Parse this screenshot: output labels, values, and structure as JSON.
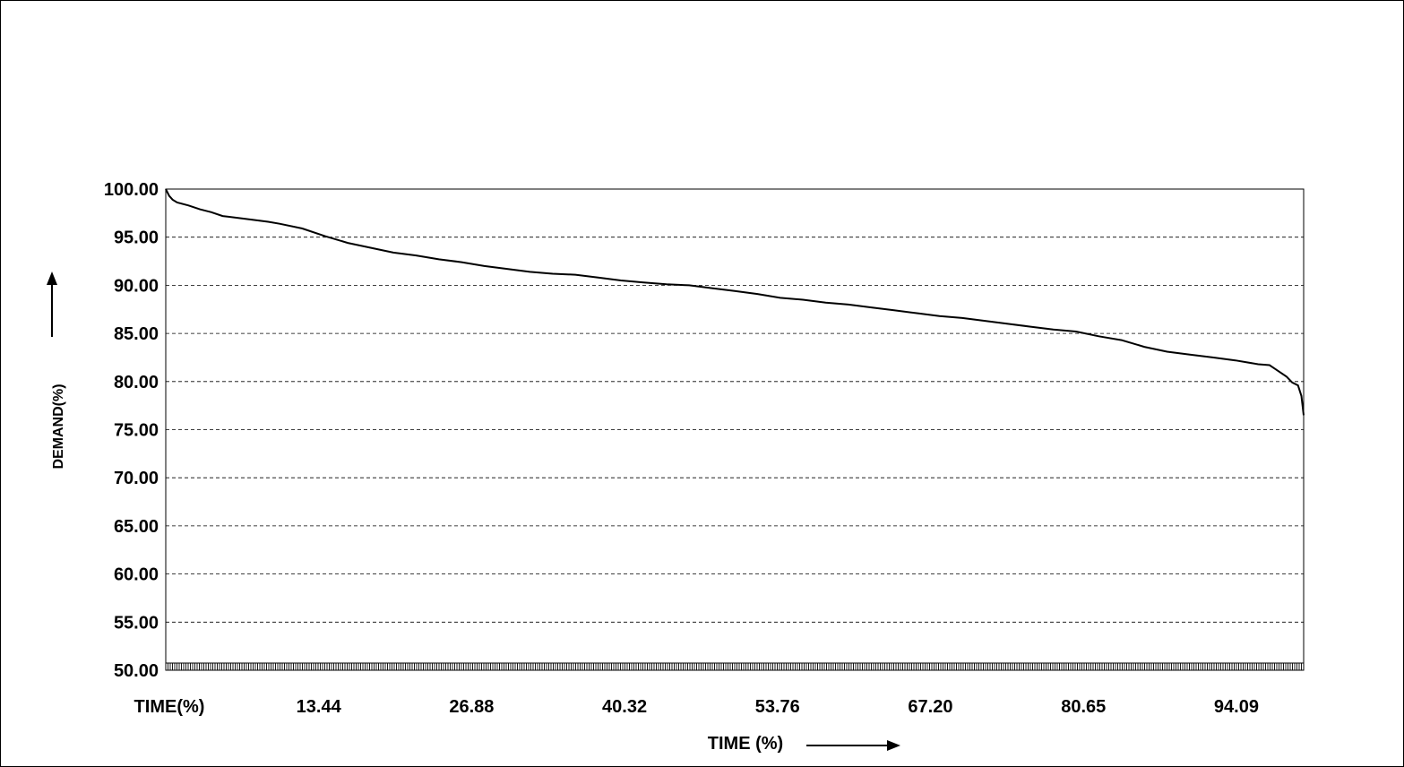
{
  "chart_data": {
    "type": "line",
    "title": "",
    "xlabel": "TIME (%)",
    "ylabel": "DEMAND(%)",
    "ylim": [
      50,
      100
    ],
    "xlim": [
      0,
      100
    ],
    "grid": "horizontal dashed",
    "legend": "none",
    "y_ticks": [
      "50.00",
      "55.00",
      "60.00",
      "65.00",
      "70.00",
      "75.00",
      "80.00",
      "85.00",
      "90.00",
      "95.00",
      "100.00"
    ],
    "x_tick_labels": [
      {
        "x": 0,
        "label": "TIME(%)"
      },
      {
        "x": 13.44,
        "label": "13.44"
      },
      {
        "x": 26.88,
        "label": "26.88"
      },
      {
        "x": 40.32,
        "label": "40.32"
      },
      {
        "x": 53.76,
        "label": "53.76"
      },
      {
        "x": 67.2,
        "label": "67.20"
      },
      {
        "x": 80.65,
        "label": "80.65"
      },
      {
        "x": 94.09,
        "label": "94.09"
      }
    ],
    "series": [
      {
        "color": "#000000",
        "x": [
          0,
          0.3,
          0.6,
          1,
          2,
          3,
          4,
          5,
          7,
          9,
          10,
          12,
          14,
          16,
          18,
          20,
          22,
          24,
          26,
          28,
          30,
          32,
          34,
          36,
          38,
          40,
          42,
          44,
          46,
          48,
          50,
          52,
          54,
          56,
          58,
          60,
          62,
          64,
          66,
          68,
          70,
          72,
          74,
          76,
          78,
          80,
          82,
          84,
          86,
          88,
          90,
          92,
          94,
          96,
          97,
          97.5,
          98.5,
          99,
          99.5,
          99.8,
          100
        ],
        "y": [
          100,
          99.3,
          98.9,
          98.6,
          98.3,
          97.9,
          97.6,
          97.2,
          96.9,
          96.6,
          96.4,
          95.9,
          95.1,
          94.4,
          93.9,
          93.4,
          93.1,
          92.7,
          92.4,
          92.0,
          91.7,
          91.4,
          91.2,
          91.1,
          90.8,
          90.5,
          90.3,
          90.1,
          90.0,
          89.7,
          89.4,
          89.1,
          88.7,
          88.5,
          88.2,
          88.0,
          87.7,
          87.4,
          87.1,
          86.8,
          86.6,
          86.3,
          86.0,
          85.7,
          85.4,
          85.2,
          84.7,
          84.3,
          83.6,
          83.1,
          82.8,
          82.5,
          82.2,
          81.8,
          81.7,
          81.3,
          80.5,
          79.9,
          79.6,
          78.5,
          76.5
        ]
      }
    ]
  }
}
